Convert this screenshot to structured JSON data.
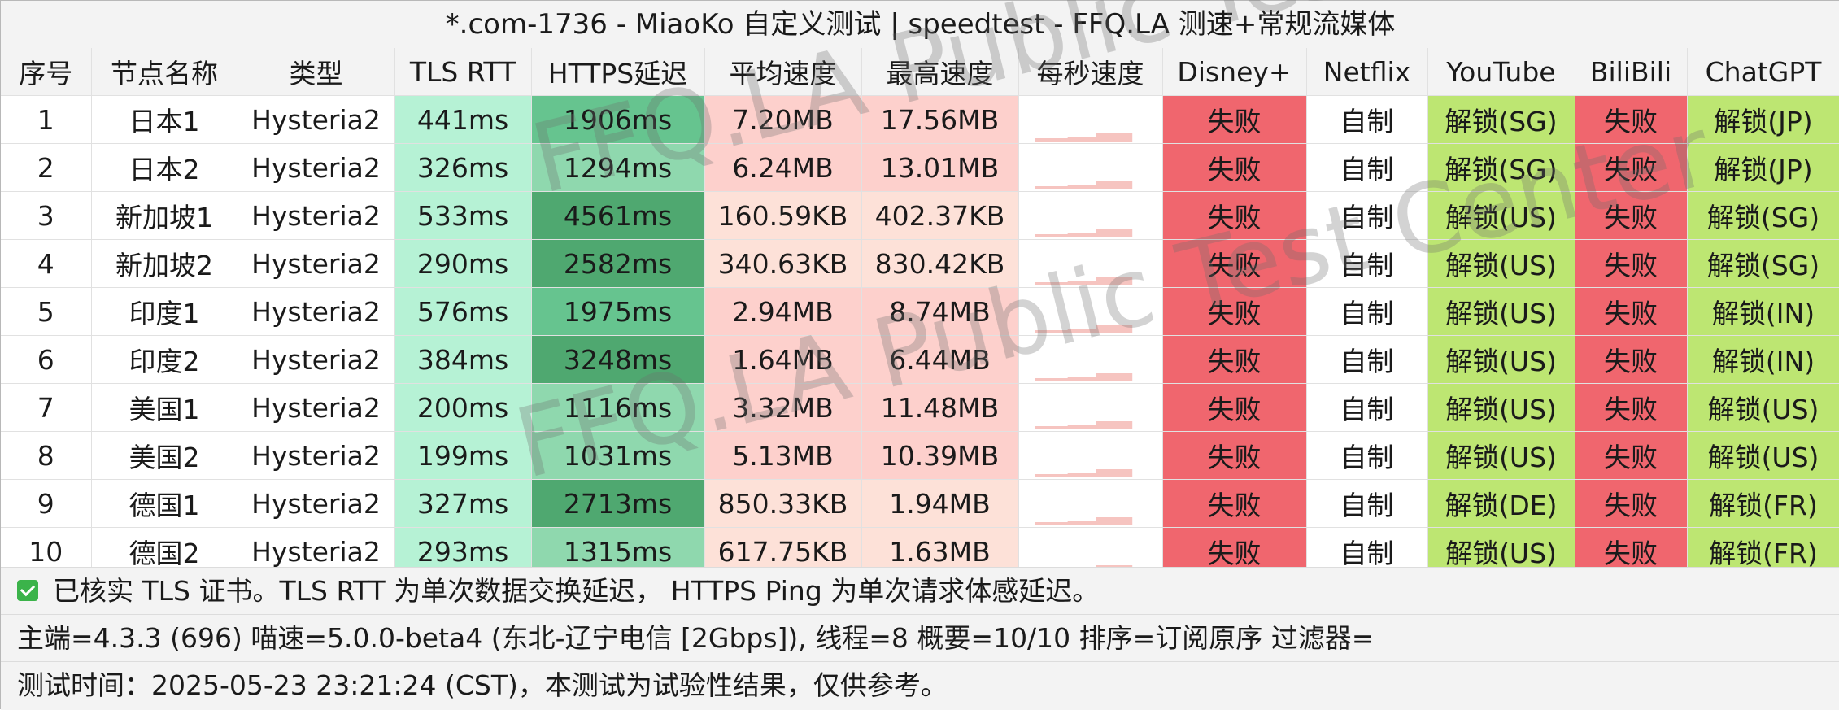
{
  "title": "*.com-1736 - MiaoKo 自定义测试 | speedtest - FFQ.LA 测速+常规流媒体",
  "columns": [
    "序号",
    "节点名称",
    "类型",
    "TLS RTT",
    "HTTPS延迟",
    "平均速度",
    "最高速度",
    "每秒速度",
    "Disney+",
    "Netflix",
    "YouTube",
    "BiliBili",
    "ChatGPT"
  ],
  "rows": [
    {
      "idx": "1",
      "name": "日本1",
      "type": "Hysteria2",
      "tls": "441ms",
      "https": "1906ms",
      "avg": "7.20MB",
      "max": "17.56MB",
      "disney": "失败",
      "netflix": "自制",
      "youtube": "解锁(SG)",
      "bili": "失败",
      "chatgpt": "解锁(JP)"
    },
    {
      "idx": "2",
      "name": "日本2",
      "type": "Hysteria2",
      "tls": "326ms",
      "https": "1294ms",
      "avg": "6.24MB",
      "max": "13.01MB",
      "disney": "失败",
      "netflix": "自制",
      "youtube": "解锁(SG)",
      "bili": "失败",
      "chatgpt": "解锁(JP)"
    },
    {
      "idx": "3",
      "name": "新加坡1",
      "type": "Hysteria2",
      "tls": "533ms",
      "https": "4561ms",
      "avg": "160.59KB",
      "max": "402.37KB",
      "disney": "失败",
      "netflix": "自制",
      "youtube": "解锁(US)",
      "bili": "失败",
      "chatgpt": "解锁(SG)"
    },
    {
      "idx": "4",
      "name": "新加坡2",
      "type": "Hysteria2",
      "tls": "290ms",
      "https": "2582ms",
      "avg": "340.63KB",
      "max": "830.42KB",
      "disney": "失败",
      "netflix": "自制",
      "youtube": "解锁(US)",
      "bili": "失败",
      "chatgpt": "解锁(SG)"
    },
    {
      "idx": "5",
      "name": "印度1",
      "type": "Hysteria2",
      "tls": "576ms",
      "https": "1975ms",
      "avg": "2.94MB",
      "max": "8.74MB",
      "disney": "失败",
      "netflix": "自制",
      "youtube": "解锁(US)",
      "bili": "失败",
      "chatgpt": "解锁(IN)"
    },
    {
      "idx": "6",
      "name": "印度2",
      "type": "Hysteria2",
      "tls": "384ms",
      "https": "3248ms",
      "avg": "1.64MB",
      "max": "6.44MB",
      "disney": "失败",
      "netflix": "自制",
      "youtube": "解锁(US)",
      "bili": "失败",
      "chatgpt": "解锁(IN)"
    },
    {
      "idx": "7",
      "name": "美国1",
      "type": "Hysteria2",
      "tls": "200ms",
      "https": "1116ms",
      "avg": "3.32MB",
      "max": "11.48MB",
      "disney": "失败",
      "netflix": "自制",
      "youtube": "解锁(US)",
      "bili": "失败",
      "chatgpt": "解锁(US)"
    },
    {
      "idx": "8",
      "name": "美国2",
      "type": "Hysteria2",
      "tls": "199ms",
      "https": "1031ms",
      "avg": "5.13MB",
      "max": "10.39MB",
      "disney": "失败",
      "netflix": "自制",
      "youtube": "解锁(US)",
      "bili": "失败",
      "chatgpt": "解锁(US)"
    },
    {
      "idx": "9",
      "name": "德国1",
      "type": "Hysteria2",
      "tls": "327ms",
      "https": "2713ms",
      "avg": "850.33KB",
      "max": "1.94MB",
      "disney": "失败",
      "netflix": "自制",
      "youtube": "解锁(DE)",
      "bili": "失败",
      "chatgpt": "解锁(FR)"
    },
    {
      "idx": "10",
      "name": "德国2",
      "type": "Hysteria2",
      "tls": "293ms",
      "https": "1315ms",
      "avg": "617.75KB",
      "max": "1.63MB",
      "disney": "失败",
      "netflix": "自制",
      "youtube": "解锁(US)",
      "bili": "失败",
      "chatgpt": "解锁(FR)"
    }
  ],
  "footer": {
    "note": "已核实 TLS 证书。TLS RTT 为单次数据交换延迟， HTTPS Ping 为单次请求体感延迟。",
    "info": "主端=4.3.3 (696) 喵速=5.0.0-beta4 (东北-辽宁电信 [2Gbps]), 线程=8 概要=10/10 排序=订阅原序 过滤器=",
    "time": "测试时间：2025-05-23 23:21:24 (CST)，本测试为试验性结果，仅供参考。"
  },
  "watermark": "FFQ.LA Public Test Center",
  "colors": {
    "fail": "#f0666e",
    "unlock": "#bde672",
    "tls": "#b6f2d5",
    "https_fast": "#8fd8ae",
    "https_mid": "#66c48f",
    "https_slow": "#4fa870",
    "speed_high": "#fdd0cc",
    "speed_low": "#ffeee8",
    "check": "#3bb34a"
  },
  "icons": {
    "verified": "checkbox-check-icon"
  }
}
